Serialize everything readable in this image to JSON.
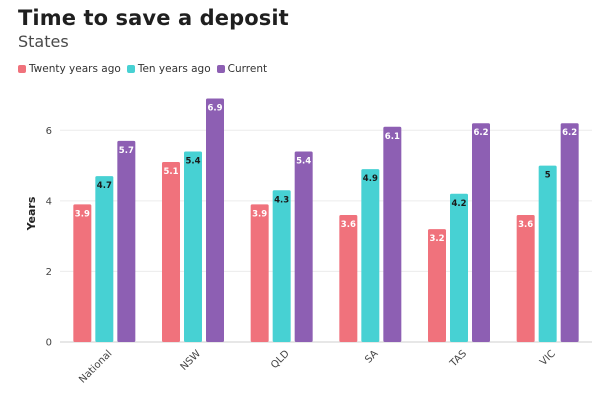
{
  "chart_data": {
    "type": "bar",
    "title": "Time to save a deposit",
    "subtitle": "States",
    "xlabel": "",
    "ylabel": "Years",
    "ylim": [
      0,
      7
    ],
    "yticks": [
      0,
      2,
      4,
      6
    ],
    "grid": true,
    "legend_position": "top-left",
    "categories": [
      "National",
      "NSW",
      "QLD",
      "SA",
      "TAS",
      "VIC"
    ],
    "series": [
      {
        "name": "Twenty years ago",
        "color": "#f0727c",
        "label_color": "#ffffff",
        "values": [
          3.9,
          5.1,
          3.9,
          3.6,
          3.2,
          3.6
        ]
      },
      {
        "name": "Ten years ago",
        "color": "#47d1d3",
        "label_color": "#1a1a1a",
        "values": [
          4.7,
          5.4,
          4.3,
          4.9,
          4.2,
          5
        ]
      },
      {
        "name": "Current",
        "color": "#8d5fb3",
        "label_color": "#ffffff",
        "values": [
          5.7,
          6.9,
          5.4,
          6.1,
          6.2,
          6.2
        ]
      }
    ]
  }
}
